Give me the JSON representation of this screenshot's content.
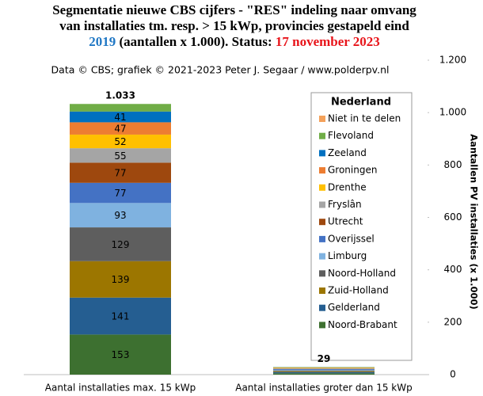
{
  "chart_data": {
    "type": "stacked_bar",
    "title": {
      "line1": "Segmentatie nieuwe CBS cijfers - \"RES\" indeling  naar omvang",
      "line2": "van installaties  tm. resp. > 15 kWp, provincies  gestapeld eind",
      "year": "2019",
      "middle": " (aantallen x 1.000). Status: ",
      "date": "17 november 2023"
    },
    "subtitle": "Data © CBS; grafiek © 2021-2023  Peter J. Segaar / www.polderpv.nl",
    "y_axis_label": "Aantallen PV installaties (x 1.000)",
    "y_axis_side": "right",
    "legend_title": "Nederland",
    "legend_position": "right",
    "categories": [
      "Aantal installaties max. 15 kWp",
      "Aantal installaties groter dan 15 kWp"
    ],
    "series": [
      {
        "name": "Noord-Brabant",
        "color": "#3d7030",
        "values": [
          153,
          5
        ]
      },
      {
        "name": "Gelderland",
        "color": "#255e91",
        "values": [
          141,
          5
        ]
      },
      {
        "name": "Zuid-Holland",
        "color": "#9c7600",
        "values": [
          139,
          3
        ]
      },
      {
        "name": "Noord-Holland",
        "color": "#5e5e5e",
        "values": [
          129,
          3
        ]
      },
      {
        "name": "Limburg",
        "color": "#7fb2e0",
        "values": [
          93,
          2
        ]
      },
      {
        "name": "Overijssel",
        "color": "#4472c4",
        "values": [
          77,
          3
        ]
      },
      {
        "name": "Utrecht",
        "color": "#9e480e",
        "values": [
          77,
          1
        ]
      },
      {
        "name": "Fryslân",
        "color": "#a5a5a5",
        "values": [
          55,
          2
        ]
      },
      {
        "name": "Drenthe",
        "color": "#ffc000",
        "values": [
          52,
          2
        ]
      },
      {
        "name": "Groningen",
        "color": "#ed7d31",
        "values": [
          47,
          1
        ]
      },
      {
        "name": "Zeeland",
        "color": "#0070c0",
        "values": [
          41,
          1
        ]
      },
      {
        "name": "Flevoland",
        "color": "#70ad47",
        "values": [
          29,
          1
        ]
      },
      {
        "name": "Niet in te delen",
        "color": "#f4a15a",
        "values": [
          0,
          0
        ]
      }
    ],
    "totals": {
      "values": [
        1033,
        29
      ],
      "value_labels": [
        "1.033",
        "29"
      ]
    },
    "ylim": [
      0,
      1200
    ],
    "yticks": [
      0,
      200,
      400,
      600,
      800,
      {
        "value": 1000,
        "label": "1.000"
      },
      {
        "value": 1200,
        "label": "1.200"
      }
    ],
    "grid": false
  }
}
